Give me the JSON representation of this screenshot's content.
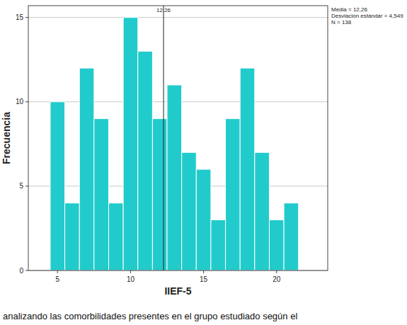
{
  "chart_data": {
    "type": "histogram",
    "x_label": "IIEF-5",
    "y_label": "Frecuencia",
    "bins": [
      4.5,
      5.5,
      6.5,
      7.5,
      8.5,
      9.5,
      10.5,
      11.5,
      12.5,
      13.5,
      14.5,
      15.5,
      16.5,
      17.5,
      18.5,
      19.5,
      20.5,
      21.5
    ],
    "values": [
      10,
      4,
      12,
      9,
      4,
      15,
      13,
      9,
      11,
      7,
      6,
      3,
      9,
      12,
      7,
      3,
      4
    ],
    "color": "#21cbcb",
    "xlim": [
      3,
      23.5
    ],
    "xticks": [
      5,
      10,
      15,
      20
    ],
    "ylim": [
      0,
      15.7
    ],
    "yticks": [
      0,
      5,
      10,
      15
    ],
    "grid": true,
    "mean_line": {
      "value": 12.26,
      "label": "12.26"
    },
    "stats_text": [
      "Media = 12,26",
      "Desviación estándar = 4,549",
      "N = 138"
    ],
    "caption": "analizando las comorbilidades presentes en el grupo estudiado según el"
  }
}
